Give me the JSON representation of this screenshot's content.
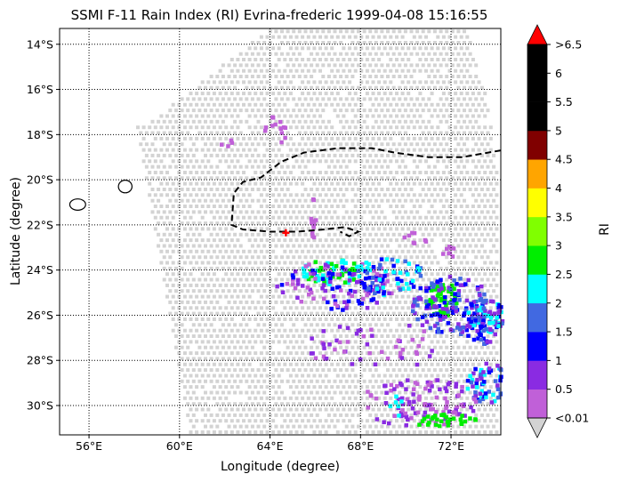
{
  "chart_data": {
    "type": "heatmap",
    "title": "SSMI F-11 Rain Index (RI) Evrina-frederic 1999-04-08 15:16:55",
    "xlabel": "Longitude (degree)",
    "ylabel": "Latitude (degree)",
    "xlim": [
      54.7,
      74.2
    ],
    "ylim": [
      -31.3,
      -13.3
    ],
    "x_ticks": [
      {
        "value": 56,
        "label": "56°E"
      },
      {
        "value": 60,
        "label": "60°E"
      },
      {
        "value": 64,
        "label": "64°E"
      },
      {
        "value": 68,
        "label": "68°E"
      },
      {
        "value": 72,
        "label": "72°E"
      }
    ],
    "y_ticks": [
      {
        "value": -14,
        "label": "14°S"
      },
      {
        "value": -16,
        "label": "16°S"
      },
      {
        "value": -18,
        "label": "18°S"
      },
      {
        "value": -20,
        "label": "20°S"
      },
      {
        "value": -22,
        "label": "22°S"
      },
      {
        "value": -24,
        "label": "24°S"
      },
      {
        "value": -26,
        "label": "26°S"
      },
      {
        "value": -28,
        "label": "28°S"
      },
      {
        "value": -30,
        "label": "30°S"
      }
    ],
    "grid": "dotted",
    "colorbar": {
      "label": "RI",
      "tick_labels": [
        "<0.01",
        "0.5",
        "1",
        "1.5",
        "2",
        "2.5",
        "3",
        "3.5",
        "4",
        "4.5",
        "5",
        "5.5",
        "6",
        ">6.5"
      ],
      "colors": [
        "#c060d8",
        "#8a2be2",
        "#0000ff",
        "#4169e1",
        "#00ffff",
        "#00ee00",
        "#80ff00",
        "#ffff00",
        "#ffa500",
        "#800000",
        "#000000",
        "#000000",
        "#000000"
      ],
      "over_color": "#ff0000",
      "under_color": "#d3d3d3",
      "swath_color": "#d3d3d3"
    },
    "swath_corners": [
      [
        59.0,
        -17.1
      ],
      [
        63.8,
        -13.3
      ],
      [
        72.6,
        -13.3
      ],
      [
        73.5,
        -16.2
      ],
      [
        74.2,
        -21.4
      ],
      [
        74.2,
        -31.3
      ],
      [
        60.4,
        -31.3
      ],
      [
        58.0,
        -17.6
      ]
    ],
    "track_line": [
      [
        74.2,
        -18.7
      ],
      [
        72.5,
        -19.0
      ],
      [
        71.0,
        -19.0
      ],
      [
        69.5,
        -18.8
      ],
      [
        68.5,
        -18.6
      ],
      [
        67.0,
        -18.6
      ],
      [
        65.5,
        -18.8
      ],
      [
        64.5,
        -19.2
      ],
      [
        63.6,
        -19.9
      ],
      [
        62.8,
        -20.1
      ],
      [
        62.4,
        -20.6
      ],
      [
        62.3,
        -22.0
      ],
      [
        62.8,
        -22.2
      ],
      [
        64.0,
        -22.3
      ],
      [
        65.2,
        -22.3
      ],
      [
        66.4,
        -22.2
      ],
      [
        67.3,
        -22.1
      ],
      [
        67.9,
        -22.3
      ],
      [
        67.5,
        -22.5
      ],
      [
        67.1,
        -22.3
      ]
    ],
    "storm_center": {
      "lon": 64.7,
      "lat": -22.35
    },
    "islands": [
      {
        "name": "reunion",
        "lon": 55.5,
        "lat": -21.1,
        "rx": 0.35,
        "ry": 0.25
      },
      {
        "name": "mauritius",
        "lon": 57.6,
        "lat": -20.3,
        "rx": 0.3,
        "ry": 0.28
      }
    ],
    "rain_cells": [
      {
        "lon": 64.2,
        "lat": -17.7,
        "count": 14,
        "min": 0.01,
        "max": 0.5,
        "rlon": 0.5,
        "rlat": 0.7
      },
      {
        "lon": 62.0,
        "lat": -18.2,
        "count": 4,
        "min": 0.01,
        "max": 0.5,
        "rlon": 0.3,
        "rlat": 0.3
      },
      {
        "lon": 65.9,
        "lat": -21.6,
        "count": 12,
        "min": 0.01,
        "max": 0.5,
        "rlon": 0.2,
        "rlat": 1.0
      },
      {
        "lon": 66.7,
        "lat": -24.0,
        "count": 70,
        "min": 2.0,
        "max": 3.0,
        "rlon": 1.4,
        "rlat": 0.55
      },
      {
        "lon": 67.0,
        "lat": -24.6,
        "count": 110,
        "min": 0.01,
        "max": 1.5,
        "rlon": 2.8,
        "rlat": 1.1
      },
      {
        "lon": 69.2,
        "lat": -24.2,
        "count": 60,
        "min": 1.0,
        "max": 2.5,
        "rlon": 1.5,
        "rlat": 0.9
      },
      {
        "lon": 71.5,
        "lat": -25.2,
        "count": 60,
        "min": 2.5,
        "max": 3.0,
        "rlon": 0.7,
        "rlat": 0.8
      },
      {
        "lon": 72.0,
        "lat": -25.5,
        "count": 130,
        "min": 0.5,
        "max": 2.0,
        "rlon": 1.8,
        "rlat": 1.3
      },
      {
        "lon": 73.4,
        "lat": -26.2,
        "count": 110,
        "min": 0.5,
        "max": 2.5,
        "rlon": 1.0,
        "rlat": 1.0
      },
      {
        "lon": 68.5,
        "lat": -27.3,
        "count": 50,
        "min": 0.01,
        "max": 1.0,
        "rlon": 3.0,
        "rlat": 1.1
      },
      {
        "lon": 73.5,
        "lat": -28.9,
        "count": 60,
        "min": 0.5,
        "max": 2.5,
        "rlon": 0.9,
        "rlat": 0.9
      },
      {
        "lon": 70.5,
        "lat": -29.8,
        "count": 110,
        "min": 0.01,
        "max": 1.0,
        "rlon": 2.6,
        "rlat": 1.1
      },
      {
        "lon": 71.6,
        "lat": -30.6,
        "count": 30,
        "min": 2.5,
        "max": 3.0,
        "rlon": 1.5,
        "rlat": 0.3
      },
      {
        "lon": 69.5,
        "lat": -30.0,
        "count": 6,
        "min": 2.0,
        "max": 2.5,
        "rlon": 0.3,
        "rlat": 0.5
      },
      {
        "lon": 70.3,
        "lat": -22.5,
        "count": 8,
        "min": 0.01,
        "max": 0.5,
        "rlon": 0.6,
        "rlat": 0.3
      },
      {
        "lon": 71.8,
        "lat": -23.1,
        "count": 8,
        "min": 0.01,
        "max": 0.5,
        "rlon": 0.3,
        "rlat": 0.3
      }
    ]
  }
}
